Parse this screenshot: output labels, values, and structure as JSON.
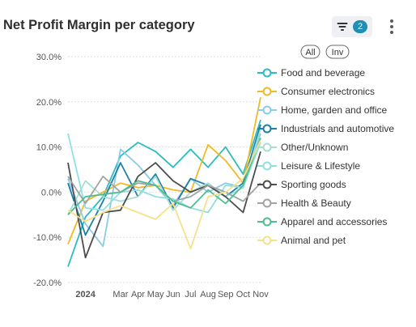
{
  "header": {
    "title": "Net Profit Margin per category",
    "filter_count": "2"
  },
  "legend_controls": {
    "all_label": "All",
    "invert_label": "Inv"
  },
  "chart_data": {
    "type": "line",
    "title": "Net Profit Margin per category",
    "xlabel": "",
    "ylabel": "",
    "x": [
      "2023-12",
      "2024-01",
      "2024-02",
      "2024-03",
      "2024-04",
      "2024-05",
      "2024-06",
      "2024-07",
      "2024-08",
      "2024-09",
      "2024-10",
      "2024-11"
    ],
    "x_tick_labels": [
      {
        "x": "2024-01",
        "label": "2024",
        "bold": true
      },
      {
        "x": "2024-03",
        "label": "Mar"
      },
      {
        "x": "2024-04",
        "label": "Apr"
      },
      {
        "x": "2024-05",
        "label": "May"
      },
      {
        "x": "2024-06",
        "label": "Jun"
      },
      {
        "x": "2024-07",
        "label": "Jul"
      },
      {
        "x": "2024-08",
        "label": "Aug"
      },
      {
        "x": "2024-09",
        "label": "Sep"
      },
      {
        "x": "2024-10",
        "label": "Oct"
      },
      {
        "x": "2024-11",
        "label": "Nov"
      }
    ],
    "y_ticks": [
      {
        "value": 30,
        "label": "30.0%"
      },
      {
        "value": 20,
        "label": "20.0%"
      },
      {
        "value": 10,
        "label": "10.0%"
      },
      {
        "value": 0,
        "label": "0.0%"
      },
      {
        "value": -10,
        "label": "-10.0%"
      },
      {
        "value": -20,
        "label": "-20.0%"
      }
    ],
    "ylim": [
      -20,
      30
    ],
    "grid": "horizontal dashed",
    "legend_position": "right",
    "series": [
      {
        "name": "Food and beverage",
        "color": "#2bbcbf",
        "values": [
          -16.5,
          -5.5,
          -1.0,
          8.0,
          11.0,
          9.0,
          5.5,
          9.5,
          5.5,
          10.0,
          4.0,
          16.0
        ]
      },
      {
        "name": "Consumer electronics",
        "color": "#f2b927",
        "values": [
          -11.5,
          -2.0,
          0.0,
          2.0,
          1.0,
          1.5,
          0.5,
          0.0,
          10.5,
          7.0,
          2.0,
          21.0
        ]
      },
      {
        "name": "Home, garden and office",
        "color": "#8ccbe6",
        "values": [
          3.0,
          -7.0,
          -12.0,
          9.5,
          6.0,
          1.5,
          -3.0,
          3.0,
          0.0,
          2.0,
          1.0,
          13.0
        ]
      },
      {
        "name": "Industrials and automotive",
        "color": "#1b7fa6",
        "values": [
          2.0,
          -9.5,
          -2.0,
          6.5,
          -1.0,
          4.0,
          -3.5,
          3.0,
          1.5,
          -1.0,
          2.0,
          15.0
        ]
      },
      {
        "name": "Other/Unknown",
        "color": "#a5dfd1",
        "values": [
          -5.0,
          2.5,
          -1.0,
          -2.0,
          -1.0,
          3.5,
          -4.0,
          0.0,
          2.0,
          -1.0,
          1.0,
          14.0
        ]
      },
      {
        "name": "Leisure & Lifestyle",
        "color": "#8fe0e2",
        "values": [
          13.0,
          -3.5,
          -4.0,
          0.0,
          0.5,
          -1.0,
          -1.5,
          -3.5,
          -4.5,
          1.5,
          1.0,
          11.0
        ]
      },
      {
        "name": "Sporting goods",
        "color": "#4d4d4d",
        "values": [
          6.5,
          -14.5,
          -4.5,
          -4.0,
          3.5,
          6.5,
          2.5,
          0.0,
          1.5,
          -1.0,
          -4.5,
          9.0
        ]
      },
      {
        "name": "Health & Beauty",
        "color": "#a3a3a3",
        "values": [
          3.5,
          -2.5,
          3.5,
          0.0,
          2.0,
          1.5,
          -2.0,
          -1.0,
          1.5,
          0.0,
          -2.0,
          2.0
        ]
      },
      {
        "name": "Apparel and accessories",
        "color": "#4fbe8f",
        "values": [
          -5.0,
          -1.0,
          -0.5,
          0.0,
          2.5,
          1.5,
          -2.0,
          -3.5,
          0.5,
          -2.5,
          1.5,
          12.0
        ]
      },
      {
        "name": "Animal and pet",
        "color": "#f7e08a",
        "values": [
          -4.0,
          -6.5,
          -4.5,
          -3.0,
          -4.5,
          -6.0,
          -2.5,
          -12.5,
          -1.0,
          0.0,
          3.0,
          11.5
        ]
      }
    ]
  }
}
